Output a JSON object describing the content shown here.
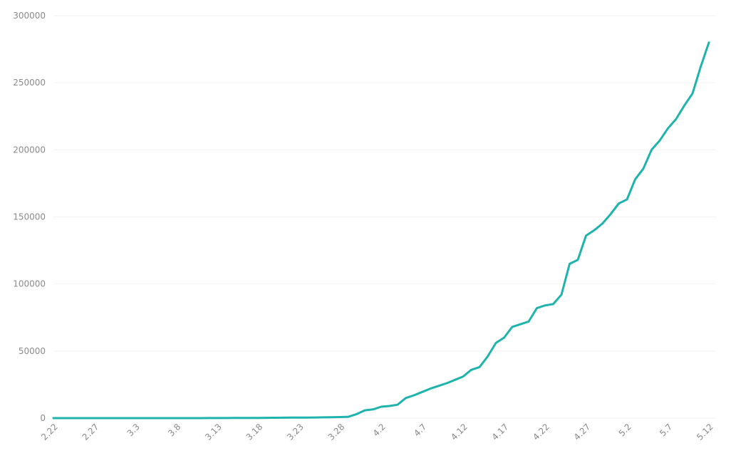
{
  "chart_data": {
    "type": "line",
    "categories": [
      "2.22",
      null,
      null,
      null,
      null,
      "2.27",
      null,
      null,
      null,
      null,
      "3.3",
      null,
      null,
      null,
      null,
      "3.8",
      null,
      null,
      null,
      null,
      "3.13",
      null,
      null,
      null,
      null,
      "3.18",
      null,
      null,
      null,
      null,
      "3.23",
      null,
      null,
      null,
      null,
      "3.28",
      null,
      null,
      null,
      null,
      "4.2",
      null,
      null,
      null,
      null,
      "4.7",
      null,
      null,
      null,
      null,
      "4.12",
      null,
      null,
      null,
      null,
      "4.17",
      null,
      null,
      null,
      null,
      "4.22",
      null,
      null,
      null,
      null,
      "4.27",
      null,
      null,
      null,
      null,
      "5.2",
      null,
      null,
      null,
      null,
      "5.7",
      null,
      null,
      null,
      null,
      "5.12"
    ],
    "values": [
      0,
      0,
      0,
      0,
      0,
      1,
      1,
      1,
      2,
      2,
      2,
      3,
      3,
      4,
      5,
      8,
      10,
      15,
      20,
      30,
      40,
      60,
      80,
      100,
      130,
      160,
      200,
      250,
      300,
      350,
      400,
      450,
      500,
      600,
      700,
      800,
      1000,
      3000,
      5800,
      6500,
      8500,
      9000,
      10000,
      15000,
      17000,
      19500,
      22000,
      24000,
      26000,
      28500,
      31000,
      36000,
      38000,
      46000,
      56000,
      60000,
      68000,
      70000,
      72000,
      82000,
      84000,
      85000,
      92000,
      115000,
      118000,
      136000,
      140000,
      145000,
      152000,
      160000,
      163000,
      178000,
      186000,
      200000,
      207000,
      216000,
      223000,
      233000,
      242000,
      262000,
      280000
    ],
    "color": "#1fb3ad",
    "ylim": [
      0,
      300000
    ],
    "yticks": [
      0,
      50000,
      100000,
      150000,
      200000,
      250000,
      300000
    ],
    "grid": true
  }
}
